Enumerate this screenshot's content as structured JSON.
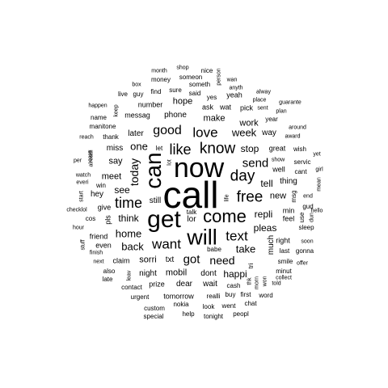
{
  "text_color": "#000000",
  "background": "#ffffff",
  "words": [
    {
      "text": "call",
      "weight": 1.0
    },
    {
      "text": "now",
      "weight": 0.8
    },
    {
      "text": "get",
      "weight": 0.72
    },
    {
      "text": "can",
      "weight": 0.66
    },
    {
      "text": "will",
      "weight": 0.64
    },
    {
      "text": "come",
      "weight": 0.52
    },
    {
      "text": "know",
      "weight": 0.47
    },
    {
      "text": "day",
      "weight": 0.46
    },
    {
      "text": "free",
      "weight": 0.46
    },
    {
      "text": "time",
      "weight": 0.45
    },
    {
      "text": "like",
      "weight": 0.44
    },
    {
      "text": "love",
      "weight": 0.43
    },
    {
      "text": "want",
      "weight": 0.42
    },
    {
      "text": "text",
      "weight": 0.42
    },
    {
      "text": "good",
      "weight": 0.4
    },
    {
      "text": "send",
      "weight": 0.38
    },
    {
      "text": "got",
      "weight": 0.38
    },
    {
      "text": "today",
      "weight": 0.36
    },
    {
      "text": "need",
      "weight": 0.34
    },
    {
      "text": "one",
      "weight": 0.33
    },
    {
      "text": "take",
      "weight": 0.32
    },
    {
      "text": "home",
      "weight": 0.32
    },
    {
      "text": "back",
      "weight": 0.32
    },
    {
      "text": "week",
      "weight": 0.31
    },
    {
      "text": "stop",
      "weight": 0.28
    },
    {
      "text": "repli",
      "weight": 0.28
    },
    {
      "text": "happi",
      "weight": 0.28
    },
    {
      "text": "see",
      "weight": 0.28
    },
    {
      "text": "pleas",
      "weight": 0.28
    },
    {
      "text": "tell",
      "weight": 0.28
    },
    {
      "text": "think",
      "weight": 0.27
    },
    {
      "text": "sorri",
      "weight": 0.26
    },
    {
      "text": "mobil",
      "weight": 0.26
    },
    {
      "text": "say",
      "weight": 0.26
    },
    {
      "text": "make",
      "weight": 0.26
    },
    {
      "text": "new",
      "weight": 0.25
    },
    {
      "text": "work",
      "weight": 0.25
    },
    {
      "text": "hope",
      "weight": 0.25
    },
    {
      "text": "meet",
      "weight": 0.25
    },
    {
      "text": "way",
      "weight": 0.24
    },
    {
      "text": "dear",
      "weight": 0.24
    },
    {
      "text": "still",
      "weight": 0.24
    },
    {
      "text": "later",
      "weight": 0.24
    },
    {
      "text": "txt",
      "weight": 0.23
    },
    {
      "text": "lor",
      "weight": 0.23
    },
    {
      "text": "dont",
      "weight": 0.23
    },
    {
      "text": "thing",
      "weight": 0.23
    },
    {
      "text": "wait",
      "weight": 0.22
    },
    {
      "text": "night",
      "weight": 0.22
    },
    {
      "text": "hey",
      "weight": 0.22
    },
    {
      "text": "miss",
      "weight": 0.22
    },
    {
      "text": "much",
      "weight": 0.22
    },
    {
      "text": "phone",
      "weight": 0.21
    },
    {
      "text": "friend",
      "weight": 0.21
    },
    {
      "text": "great",
      "weight": 0.21
    },
    {
      "text": "ask",
      "weight": 0.21
    },
    {
      "text": "well",
      "weight": 0.21
    },
    {
      "text": "min",
      "weight": 0.2
    },
    {
      "text": "feel",
      "weight": 0.2
    },
    {
      "text": "messag",
      "weight": 0.2
    },
    {
      "text": "prize",
      "weight": 0.2
    },
    {
      "text": "tomorrow",
      "weight": 0.2
    },
    {
      "text": "number",
      "weight": 0.2
    },
    {
      "text": "pick",
      "weight": 0.2
    },
    {
      "text": "yeah",
      "weight": 0.19
    },
    {
      "text": "wat",
      "weight": 0.19
    },
    {
      "text": "claim",
      "weight": 0.19
    },
    {
      "text": "pls",
      "weight": 0.19
    },
    {
      "text": "give",
      "weight": 0.19
    },
    {
      "text": "even",
      "weight": 0.19
    },
    {
      "text": "right",
      "weight": 0.19
    },
    {
      "text": "last",
      "weight": 0.18
    },
    {
      "text": "thank",
      "weight": 0.18
    },
    {
      "text": "servic",
      "weight": 0.18
    },
    {
      "text": "realli",
      "weight": 0.17
    },
    {
      "text": "said",
      "weight": 0.17
    },
    {
      "text": "cash",
      "weight": 0.17
    },
    {
      "text": "smile",
      "weight": 0.17
    },
    {
      "text": "sure",
      "weight": 0.17
    },
    {
      "text": "yes",
      "weight": 0.17
    },
    {
      "text": "let",
      "weight": 0.17
    },
    {
      "text": "contact",
      "weight": 0.16
    },
    {
      "text": "urgent",
      "weight": 0.16
    },
    {
      "text": "gonna",
      "weight": 0.16
    },
    {
      "text": "buy",
      "weight": 0.16
    },
    {
      "text": "first",
      "weight": 0.16
    },
    {
      "text": "sleep",
      "weight": 0.16
    },
    {
      "text": "cant",
      "weight": 0.16
    },
    {
      "text": "gud",
      "weight": 0.16
    },
    {
      "text": "custom",
      "weight": 0.15
    },
    {
      "text": "nokia",
      "weight": 0.15
    },
    {
      "text": "babe",
      "weight": 0.15
    },
    {
      "text": "talk",
      "weight": 0.15
    },
    {
      "text": "also",
      "weight": 0.15
    },
    {
      "text": "late",
      "weight": 0.15
    },
    {
      "text": "finish",
      "weight": 0.15
    },
    {
      "text": "next",
      "weight": 0.15
    },
    {
      "text": "cos",
      "weight": 0.15
    },
    {
      "text": "checklol",
      "weight": 0.15
    },
    {
      "text": "win",
      "weight": 0.15
    },
    {
      "text": "everi",
      "weight": 0.15
    },
    {
      "text": "watch",
      "weight": 0.15
    },
    {
      "text": "per",
      "weight": 0.15
    },
    {
      "text": "manitone",
      "weight": 0.15
    },
    {
      "text": "name",
      "weight": 0.15
    },
    {
      "text": "happen",
      "weight": 0.15
    },
    {
      "text": "box",
      "weight": 0.15
    },
    {
      "text": "live",
      "weight": 0.15
    },
    {
      "text": "guy",
      "weight": 0.15
    },
    {
      "text": "find",
      "weight": 0.15
    },
    {
      "text": "money",
      "weight": 0.15
    },
    {
      "text": "month",
      "weight": 0.15
    },
    {
      "text": "shop",
      "weight": 0.15
    },
    {
      "text": "nice",
      "weight": 0.15
    },
    {
      "text": "someon",
      "weight": 0.15
    },
    {
      "text": "someth",
      "weight": 0.15
    },
    {
      "text": "wan",
      "weight": 0.15
    },
    {
      "text": "anyth",
      "weight": 0.15
    },
    {
      "text": "place",
      "weight": 0.15
    },
    {
      "text": "alway",
      "weight": 0.15
    },
    {
      "text": "sent",
      "weight": 0.15
    },
    {
      "text": "plan",
      "weight": 0.15
    },
    {
      "text": "guarante",
      "weight": 0.15
    },
    {
      "text": "year",
      "weight": 0.15
    },
    {
      "text": "around",
      "weight": 0.15
    },
    {
      "text": "award",
      "weight": 0.15
    },
    {
      "text": "wish",
      "weight": 0.15
    },
    {
      "text": "yet",
      "weight": 0.15
    },
    {
      "text": "show",
      "weight": 0.15
    },
    {
      "text": "girl",
      "weight": 0.15
    },
    {
      "text": "mean",
      "weight": 0.15
    },
    {
      "text": "end",
      "weight": 0.15
    },
    {
      "text": "hello",
      "weight": 0.15
    },
    {
      "text": "dun",
      "weight": 0.15
    },
    {
      "text": "soon",
      "weight": 0.15
    },
    {
      "text": "offer",
      "weight": 0.15
    },
    {
      "text": "minut",
      "weight": 0.15
    },
    {
      "text": "collect",
      "weight": 0.15
    },
    {
      "text": "told",
      "weight": 0.15
    },
    {
      "text": "word",
      "weight": 0.15
    },
    {
      "text": "chat",
      "weight": 0.15
    },
    {
      "text": "went",
      "weight": 0.15
    },
    {
      "text": "look",
      "weight": 0.15
    },
    {
      "text": "tonight",
      "weight": 0.15
    },
    {
      "text": "peopl",
      "weight": 0.15
    },
    {
      "text": "help",
      "weight": 0.15
    },
    {
      "text": "special",
      "weight": 0.15
    },
    {
      "text": "hour",
      "weight": 0.15
    },
    {
      "text": "stuff",
      "weight": 0.15
    },
    {
      "text": "start",
      "weight": 0.15
    },
    {
      "text": "care",
      "weight": 0.15
    },
    {
      "text": "reach",
      "weight": 0.15
    },
    {
      "text": "keep",
      "weight": 0.15
    },
    {
      "text": "alreadi",
      "weight": 0.15
    },
    {
      "text": "person",
      "weight": 0.15
    },
    {
      "text": "life",
      "weight": 0.15
    },
    {
      "text": "lot",
      "weight": 0.15
    },
    {
      "text": "use",
      "weight": 0.15
    },
    {
      "text": "msg",
      "weight": 0.15
    },
    {
      "text": "tri",
      "weight": 0.15
    },
    {
      "text": "thk",
      "weight": 0.15
    },
    {
      "text": "morn",
      "weight": 0.15
    },
    {
      "text": "won",
      "weight": 0.15
    },
    {
      "text": "leav",
      "weight": 0.15
    }
  ]
}
